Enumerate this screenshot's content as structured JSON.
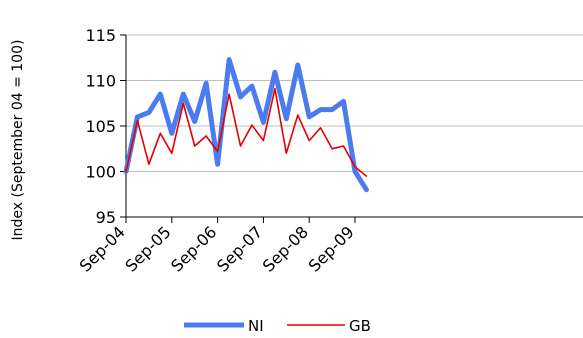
{
  "chart_data": {
    "type": "line",
    "title": "",
    "xlabel": "",
    "ylabel": "Index (September 04 = 100)",
    "ylim": [
      95,
      115
    ],
    "yticks": [
      "95",
      "100",
      "105",
      "110",
      "115"
    ],
    "xtick_labels": [
      "Sep-04",
      "Sep-05",
      "Sep-06",
      "Sep-07",
      "Sep-08",
      "Sep-09"
    ],
    "x": [
      "Sep-04",
      "Dec-04",
      "Mar-05",
      "Jun-05",
      "Sep-05",
      "Dec-05",
      "Mar-06",
      "Jun-06",
      "Sep-06",
      "Dec-06",
      "Mar-07",
      "Jun-07",
      "Sep-07",
      "Dec-07",
      "Mar-08",
      "Jun-08",
      "Sep-08",
      "Dec-08",
      "Mar-09",
      "Jun-09",
      "Sep-09",
      "Dec-09"
    ],
    "series": [
      {
        "name": "NI",
        "color": "#4a7cf0",
        "values": [
          100.0,
          106.0,
          106.5,
          108.5,
          104.2,
          108.5,
          105.5,
          109.7,
          100.8,
          112.3,
          108.2,
          109.4,
          105.4,
          110.9,
          105.8,
          111.7,
          106.0,
          106.8,
          106.8,
          107.7,
          100.0,
          98.0
        ]
      },
      {
        "name": "GB",
        "color": "#e60000",
        "values": [
          100.0,
          105.6,
          100.8,
          104.2,
          102.0,
          107.5,
          102.8,
          103.9,
          102.2,
          108.5,
          102.8,
          105.1,
          103.4,
          109.1,
          102.0,
          106.2,
          103.4,
          104.8,
          102.5,
          102.8,
          100.5,
          99.5
        ]
      }
    ],
    "grid": true,
    "legend": "bottom"
  }
}
